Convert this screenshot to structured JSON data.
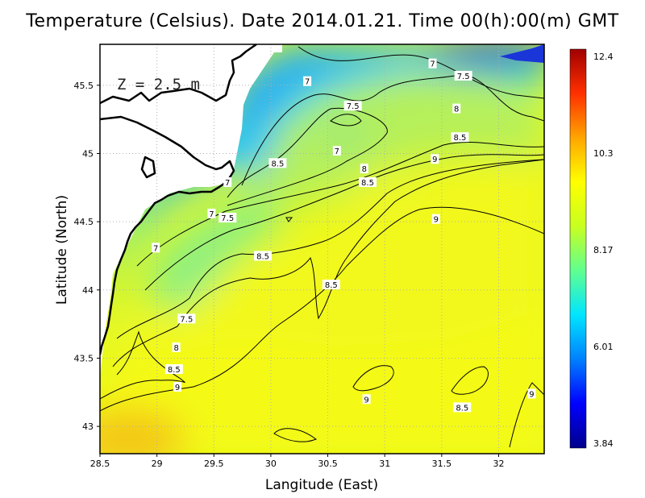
{
  "title": "Temperature (Celsius). Date 2014.01.21. Time 00(h):00(m) GMT",
  "depth_label": "Z = 2.5 m",
  "x_axis": {
    "label": "Langitude (East)",
    "range": [
      28.5,
      32.4
    ],
    "ticks": [
      "28.5",
      "29",
      "29.5",
      "30",
      "30.5",
      "31",
      "31.5",
      "32"
    ]
  },
  "y_axis": {
    "label": "Latitude (North)",
    "range": [
      42.8,
      45.8
    ],
    "ticks": [
      "43",
      "43.5",
      "44",
      "44.5",
      "45",
      "45.5"
    ]
  },
  "colorbar": {
    "min": 3.84,
    "max": 12.4,
    "labels": [
      "12.4",
      "10.3",
      "8.17",
      "6.01",
      "3.84"
    ],
    "colors": [
      "#00008b",
      "#0000ff",
      "#0080ff",
      "#00e5ff",
      "#60ff90",
      "#c8ff20",
      "#ffff00",
      "#ffa500",
      "#ff3000",
      "#a00000"
    ]
  },
  "grid": "on",
  "contour_labels": [
    {
      "text": "7",
      "lon": 31.42,
      "lat": 45.66
    },
    {
      "text": "7.5",
      "lon": 31.69,
      "lat": 45.57
    },
    {
      "text": "7",
      "lon": 30.32,
      "lat": 45.53
    },
    {
      "text": "7.5",
      "lon": 30.72,
      "lat": 45.35
    },
    {
      "text": "8",
      "lon": 31.63,
      "lat": 45.33
    },
    {
      "text": "8.5",
      "lon": 31.66,
      "lat": 45.12
    },
    {
      "text": "9",
      "lon": 31.44,
      "lat": 44.96
    },
    {
      "text": "7",
      "lon": 30.58,
      "lat": 45.02
    },
    {
      "text": "8.5",
      "lon": 30.06,
      "lat": 44.93
    },
    {
      "text": "8",
      "lon": 30.82,
      "lat": 44.89
    },
    {
      "text": "8.5",
      "lon": 30.85,
      "lat": 44.79
    },
    {
      "text": "7",
      "lon": 29.62,
      "lat": 44.79
    },
    {
      "text": "7",
      "lon": 29.48,
      "lat": 44.56
    },
    {
      "text": "7.5",
      "lon": 29.62,
      "lat": 44.53
    },
    {
      "text": "9",
      "lon": 31.45,
      "lat": 44.52
    },
    {
      "text": "7",
      "lon": 28.99,
      "lat": 44.31
    },
    {
      "text": "8.5",
      "lon": 29.93,
      "lat": 44.25
    },
    {
      "text": "8.5",
      "lon": 30.53,
      "lat": 44.04
    },
    {
      "text": "7.5",
      "lon": 29.26,
      "lat": 43.79
    },
    {
      "text": "8",
      "lon": 29.17,
      "lat": 43.58
    },
    {
      "text": "8.5",
      "lon": 29.15,
      "lat": 43.42
    },
    {
      "text": "9",
      "lon": 29.18,
      "lat": 43.29
    },
    {
      "text": "9",
      "lon": 30.84,
      "lat": 43.2
    },
    {
      "text": "8.5",
      "lon": 31.68,
      "lat": 43.14
    },
    {
      "text": "9",
      "lon": 32.29,
      "lat": 43.24
    }
  ]
}
